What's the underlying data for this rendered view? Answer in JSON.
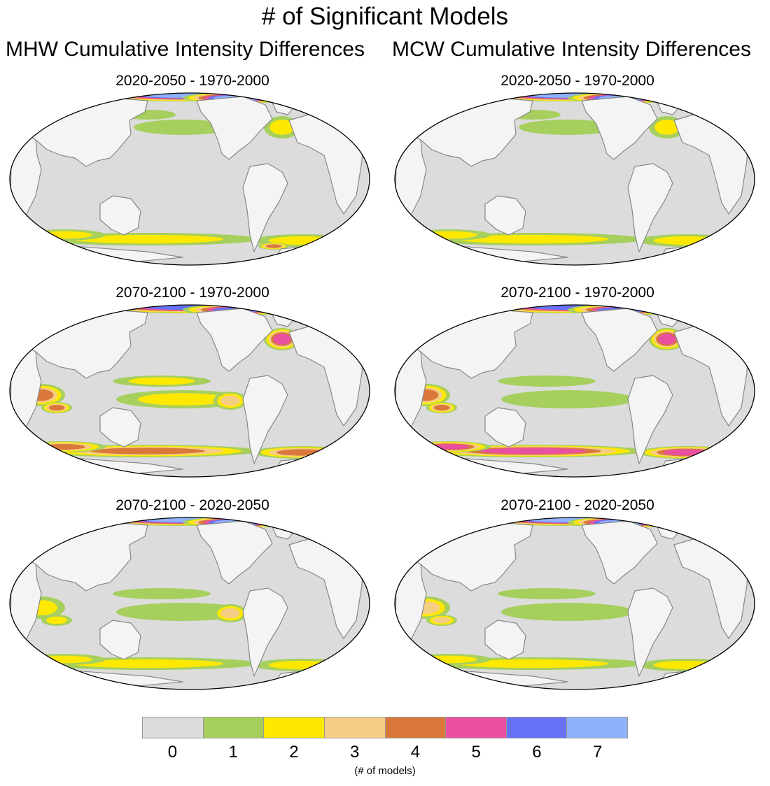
{
  "figure": {
    "title": "# of Significant Models",
    "columns": [
      {
        "title": "MHW Cumulative Intensity Differences"
      },
      {
        "title": "MCW Cumulative Intensity Differences"
      }
    ],
    "rows": [
      {
        "label": "2020-2050 - 1970-2000"
      },
      {
        "label": "2070-2100 - 1970-2000"
      },
      {
        "label": "2070-2100 - 2020-2050"
      }
    ]
  },
  "colors": {
    "ocean": "#dcdcdc",
    "land": "#f4f4f4",
    "coast": "#888888",
    "outline": "#000000"
  },
  "legend": {
    "caption": "(# of models)",
    "levels": [
      {
        "label": "0",
        "color": "#dcdcdc"
      },
      {
        "label": "1",
        "color": "#a6cf5e"
      },
      {
        "label": "2",
        "color": "#ffe800"
      },
      {
        "label": "3",
        "color": "#f5cd84"
      },
      {
        "label": "4",
        "color": "#d9783a"
      },
      {
        "label": "5",
        "color": "#ea50a1"
      },
      {
        "label": "6",
        "color": "#6671f5"
      },
      {
        "label": "7",
        "color": "#8fb2fd"
      }
    ]
  },
  "panels": [
    {
      "id": "mhw-2020-2050-vs-1970-2000",
      "row": 0,
      "col": 0,
      "regions": [
        {
          "area": "arctic",
          "level": 7
        },
        {
          "area": "north-pacific",
          "level": 1
        },
        {
          "area": "north-atlantic",
          "level": 2
        },
        {
          "area": "southern-ocean",
          "level": 2
        },
        {
          "area": "southern-ocean-east",
          "level": 4
        }
      ]
    },
    {
      "id": "mcw-2020-2050-vs-1970-2000",
      "row": 0,
      "col": 1,
      "regions": [
        {
          "area": "arctic",
          "level": 7
        },
        {
          "area": "north-pacific",
          "level": 1
        },
        {
          "area": "north-atlantic",
          "level": 2
        },
        {
          "area": "southern-ocean",
          "level": 2
        }
      ]
    },
    {
      "id": "mhw-2070-2100-vs-1970-2000",
      "row": 1,
      "col": 0,
      "regions": [
        {
          "area": "arctic",
          "level": 6
        },
        {
          "area": "indian-ocean",
          "level": 4
        },
        {
          "area": "tropical-pacific",
          "level": 2
        },
        {
          "area": "east-pacific",
          "level": 3
        },
        {
          "area": "north-atlantic",
          "level": 5
        },
        {
          "area": "southern-ocean",
          "level": 4
        }
      ]
    },
    {
      "id": "mcw-2070-2100-vs-1970-2000",
      "row": 1,
      "col": 1,
      "regions": [
        {
          "area": "arctic",
          "level": 6
        },
        {
          "area": "indian-ocean",
          "level": 4
        },
        {
          "area": "tropical-pacific",
          "level": 1
        },
        {
          "area": "north-atlantic",
          "level": 5
        },
        {
          "area": "southern-ocean",
          "level": 5
        }
      ]
    },
    {
      "id": "mhw-2070-2100-vs-2020-2050",
      "row": 2,
      "col": 0,
      "regions": [
        {
          "area": "arctic",
          "level": 7
        },
        {
          "area": "indian-ocean",
          "level": 2
        },
        {
          "area": "tropical-pacific",
          "level": 1
        },
        {
          "area": "east-pacific",
          "level": 3
        },
        {
          "area": "southern-ocean",
          "level": 2
        }
      ]
    },
    {
      "id": "mcw-2070-2100-vs-2020-2050",
      "row": 2,
      "col": 1,
      "regions": [
        {
          "area": "arctic",
          "level": 7
        },
        {
          "area": "indian-ocean",
          "level": 3
        },
        {
          "area": "tropical-pacific",
          "level": 1
        },
        {
          "area": "southern-ocean",
          "level": 2
        }
      ]
    }
  ]
}
